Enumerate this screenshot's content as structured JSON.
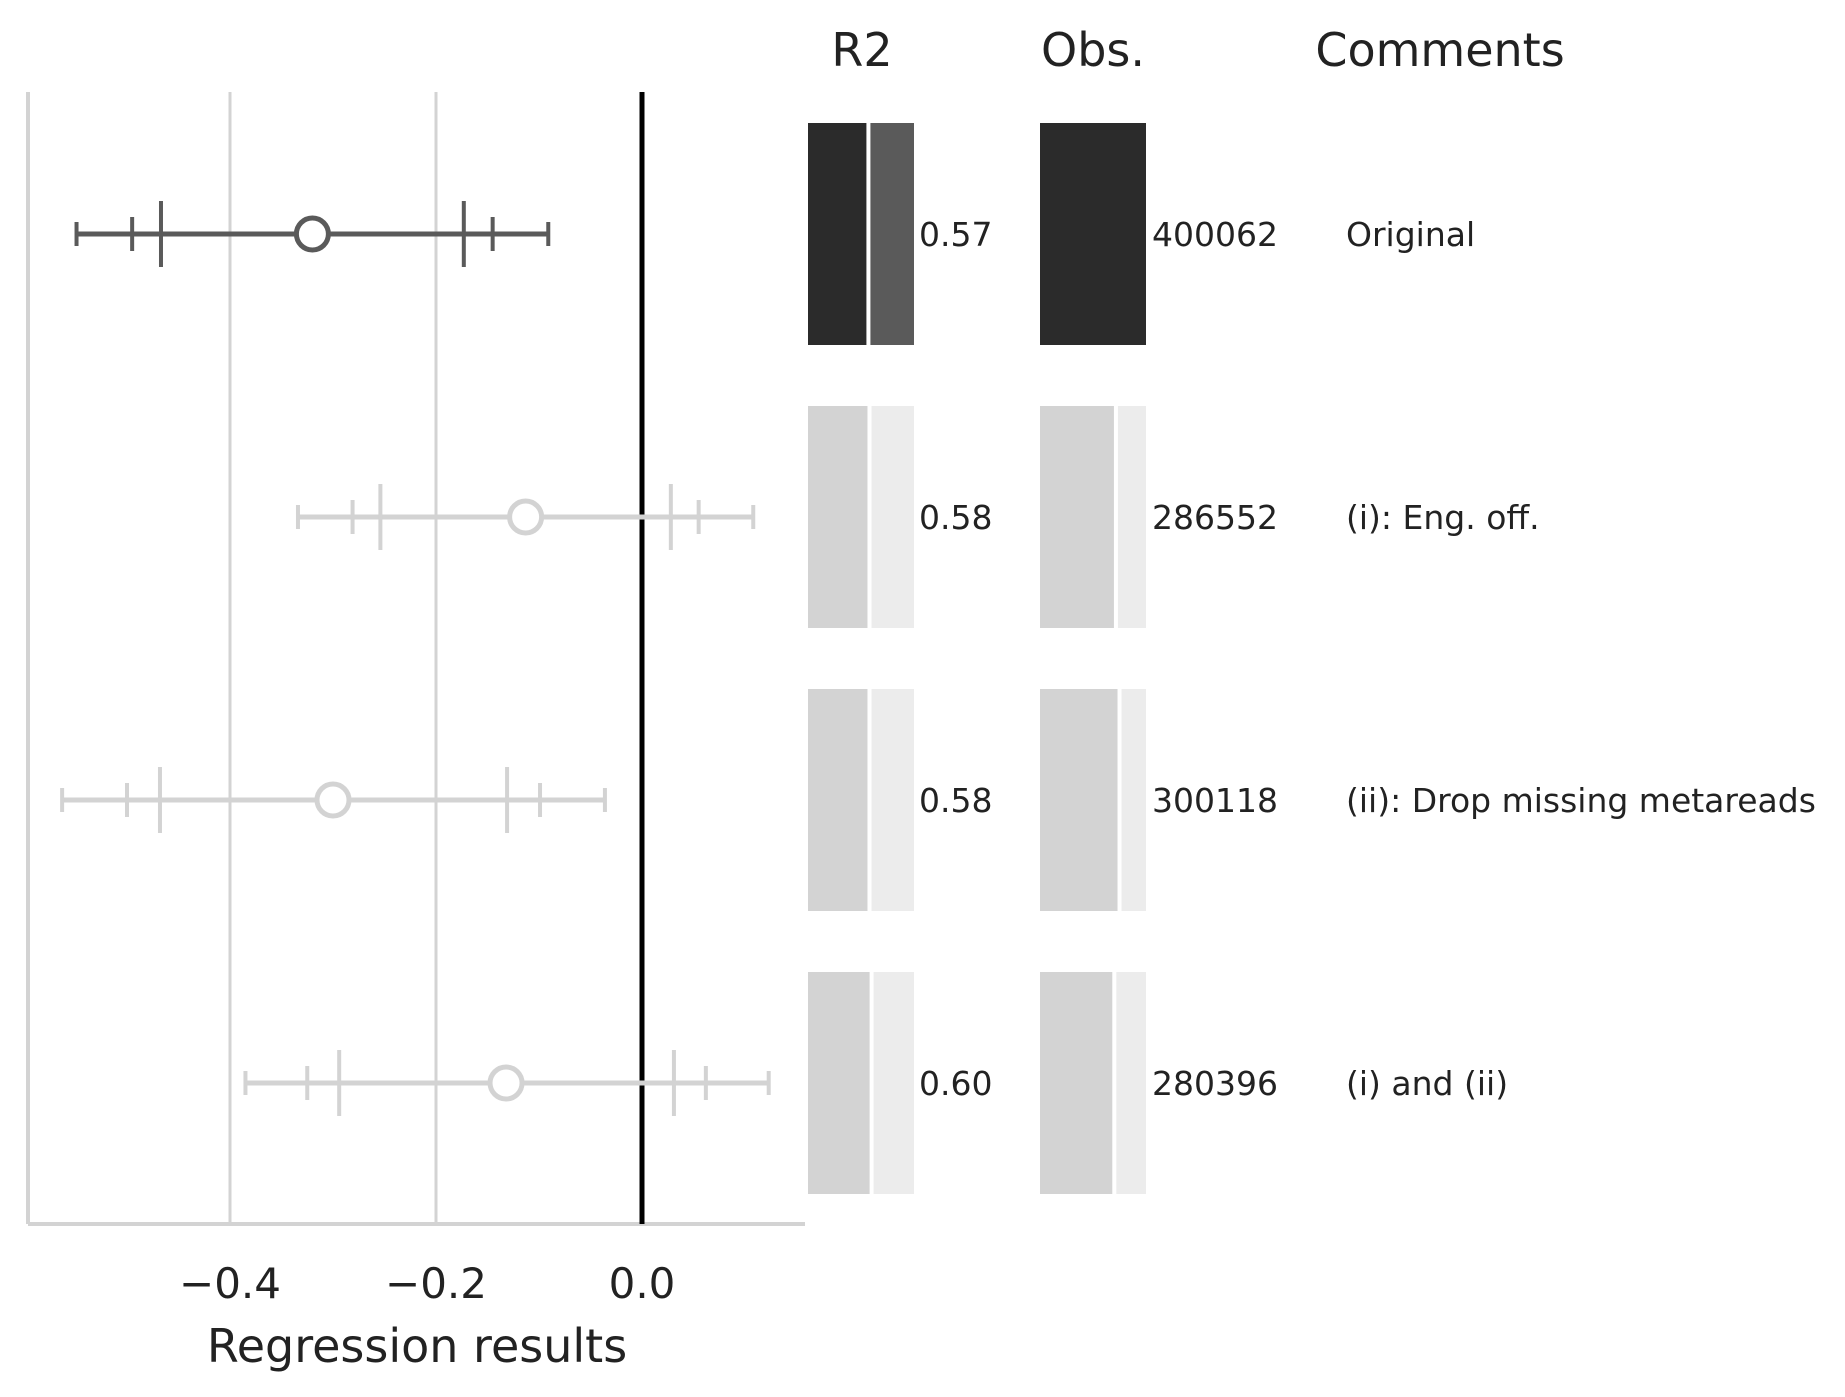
{
  "chart_data": {
    "type": "forest",
    "xlabel": "Regression results",
    "xlim": [
      -0.6,
      0.16
    ],
    "xticks": [
      -0.4,
      -0.2,
      0.0
    ],
    "xtick_labels": [
      "−0.4",
      "−0.2",
      "0.0"
    ],
    "grid": "vertical",
    "reference_line": 0.0,
    "headers": {
      "r2": "R2",
      "obs": "Obs.",
      "comments": "Comments"
    },
    "obs_max": 400062,
    "rows": [
      {
        "estimate": -0.32,
        "ci_inner": [
          -0.467,
          -0.173
        ],
        "ci_mid": [
          -0.495,
          -0.145
        ],
        "ci_outer": [
          -0.549,
          -0.091
        ],
        "r2": 0.57,
        "r2_label": "0.57",
        "obs": 400062,
        "obs_label": "400062",
        "comment": "Original",
        "highlight": true
      },
      {
        "estimate": -0.113,
        "ci_inner": [
          -0.254,
          0.028
        ],
        "ci_mid": [
          -0.281,
          0.055
        ],
        "ci_outer": [
          -0.334,
          0.108
        ],
        "r2": 0.58,
        "r2_label": "0.58",
        "obs": 286552,
        "obs_label": "286552",
        "comment": "(i): Eng. off.",
        "highlight": false
      },
      {
        "estimate": -0.3,
        "ci_inner": [
          -0.468,
          -0.131
        ],
        "ci_mid": [
          -0.5,
          -0.099
        ],
        "ci_outer": [
          -0.563,
          -0.036
        ],
        "r2": 0.58,
        "r2_label": "0.58",
        "obs": 300118,
        "obs_label": "300118",
        "comment": "(ii): Drop missing metareads",
        "highlight": false
      },
      {
        "estimate": -0.132,
        "ci_inner": [
          -0.294,
          0.031
        ],
        "ci_mid": [
          -0.325,
          0.062
        ],
        "ci_outer": [
          -0.385,
          0.123
        ],
        "r2": 0.6,
        "r2_label": "0.60",
        "obs": 280396,
        "obs_label": "280396",
        "comment": "(i) and (ii)",
        "highlight": false
      }
    ]
  },
  "colors": {
    "highlight_line": "#5a5a5a",
    "muted_line": "#d3d3d3",
    "grid": "#d3d3d3",
    "zero_line": "#000000",
    "bar_dark": "#2b2b2b",
    "bar_dark_rest": "#5a5a5a",
    "bar_light": "#d3d3d3",
    "bar_light_rest": "#ececec",
    "text": "#222222"
  }
}
